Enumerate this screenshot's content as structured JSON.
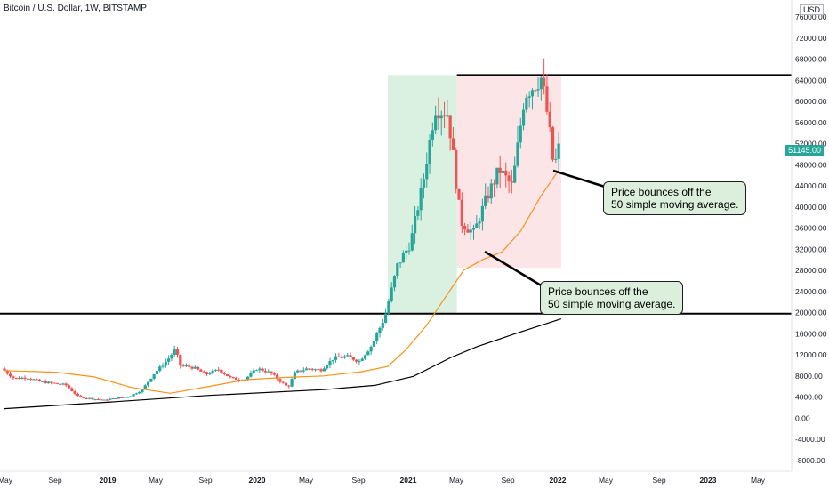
{
  "header": {
    "title": "Bitcoin / U.S. Dollar, 1W, BITSTAMP",
    "currency": "USD"
  },
  "price_axis": {
    "labels": [
      "76000.00",
      "72000.00",
      "68000.00",
      "64000.00",
      "60000.00",
      "56000.00",
      "52000.00",
      "48000.00",
      "44000.00",
      "40000.00",
      "36000.00",
      "32000.00",
      "28000.00",
      "24000.00",
      "20000.00",
      "16000.00",
      "12000.00",
      "8000.00",
      "4000.00",
      "0.00",
      "-4000.00",
      "-8000.00"
    ],
    "last_price": "51145.00"
  },
  "time_axis": {
    "labels": [
      "May",
      "Sep",
      "2019",
      "May",
      "Sep",
      "2020",
      "May",
      "Sep",
      "2021",
      "May",
      "Sep",
      "2022",
      "May",
      "Sep",
      "2023",
      "May"
    ]
  },
  "annotations": [
    {
      "text": "Price bounces off the\n50 simple moving average."
    },
    {
      "text": "Price bounces off the\n50 simple moving average."
    }
  ],
  "colors": {
    "up": "#26a69a",
    "down": "#ef5350",
    "sma50": "#f7931a",
    "sma200": "#000000",
    "green_zone": "#d6eedd",
    "red_zone": "#fbe2e4"
  },
  "chart_data": {
    "type": "candlestick",
    "title": "Bitcoin / U.S. Dollar, 1W, BITSTAMP",
    "ylim": [
      -10000,
      78000
    ],
    "horizontal_levels": [
      65000,
      19800
    ],
    "zones": [
      {
        "color": "green",
        "from": "2020-11-01",
        "to": "2021-04-15",
        "price_range": [
          19800,
          65000
        ]
      },
      {
        "color": "red",
        "from": "2021-04-15",
        "to": "2021-12-20",
        "price_range": [
          28500,
          65000
        ]
      }
    ],
    "close_series": [
      [
        "2018-05-01",
        9400
      ],
      [
        "2018-06-01",
        7500
      ],
      [
        "2018-07-01",
        7700
      ],
      [
        "2018-08-01",
        6900
      ],
      [
        "2018-09-01",
        6600
      ],
      [
        "2018-10-01",
        6300
      ],
      [
        "2018-11-01",
        4000
      ],
      [
        "2018-12-01",
        3700
      ],
      [
        "2019-01-01",
        3400
      ],
      [
        "2019-02-01",
        3800
      ],
      [
        "2019-03-01",
        4100
      ],
      [
        "2019-04-01",
        5300
      ],
      [
        "2019-05-01",
        8500
      ],
      [
        "2019-06-01",
        11000
      ],
      [
        "2019-06-20",
        13000
      ],
      [
        "2019-07-01",
        10000
      ],
      [
        "2019-08-01",
        9600
      ],
      [
        "2019-09-01",
        8300
      ],
      [
        "2019-10-01",
        9200
      ],
      [
        "2019-11-01",
        7500
      ],
      [
        "2019-12-01",
        7200
      ],
      [
        "2020-01-01",
        9400
      ],
      [
        "2020-02-01",
        8600
      ],
      [
        "2020-03-15",
        5800
      ],
      [
        "2020-04-01",
        8700
      ],
      [
        "2020-05-01",
        9400
      ],
      [
        "2020-06-01",
        9100
      ],
      [
        "2020-07-01",
        11300
      ],
      [
        "2020-08-01",
        11700
      ],
      [
        "2020-09-01",
        10800
      ],
      [
        "2020-10-01",
        13800
      ],
      [
        "2020-11-01",
        19200
      ],
      [
        "2020-12-01",
        28900
      ],
      [
        "2021-01-01",
        33100
      ],
      [
        "2021-02-01",
        45000
      ],
      [
        "2021-03-01",
        58800
      ],
      [
        "2021-04-01",
        57700
      ],
      [
        "2021-05-01",
        37300
      ],
      [
        "2021-06-01",
        35000
      ],
      [
        "2021-07-01",
        41500
      ],
      [
        "2021-08-01",
        47100
      ],
      [
        "2021-09-01",
        43800
      ],
      [
        "2021-10-01",
        61300
      ],
      [
        "2021-11-10",
        64500
      ],
      [
        "2021-11-25",
        57000
      ],
      [
        "2021-12-10",
        47000
      ],
      [
        "2021-12-20",
        51145
      ]
    ],
    "sma50": [
      [
        "2018-05-01",
        9000
      ],
      [
        "2018-09-01",
        8700
      ],
      [
        "2018-12-01",
        7800
      ],
      [
        "2019-03-01",
        5800
      ],
      [
        "2019-06-01",
        4700
      ],
      [
        "2019-09-01",
        6000
      ],
      [
        "2019-12-01",
        7300
      ],
      [
        "2020-03-01",
        7700
      ],
      [
        "2020-06-01",
        8000
      ],
      [
        "2020-09-01",
        8800
      ],
      [
        "2020-11-01",
        9800
      ],
      [
        "2020-12-15",
        13000
      ],
      [
        "2021-02-01",
        17500
      ],
      [
        "2021-03-15",
        22500
      ],
      [
        "2021-05-01",
        28000
      ],
      [
        "2021-06-15",
        30000
      ],
      [
        "2021-08-01",
        31500
      ],
      [
        "2021-09-15",
        35500
      ],
      [
        "2021-11-01",
        42000
      ],
      [
        "2021-12-10",
        46500
      ]
    ],
    "sma200": [
      [
        "2018-05-01",
        1800
      ],
      [
        "2019-01-01",
        3000
      ],
      [
        "2019-09-01",
        4300
      ],
      [
        "2020-06-01",
        5400
      ],
      [
        "2020-10-01",
        6200
      ],
      [
        "2021-01-01",
        7900
      ],
      [
        "2021-04-01",
        11500
      ],
      [
        "2021-06-01",
        13500
      ],
      [
        "2021-09-01",
        16000
      ],
      [
        "2021-12-20",
        18800
      ]
    ]
  }
}
